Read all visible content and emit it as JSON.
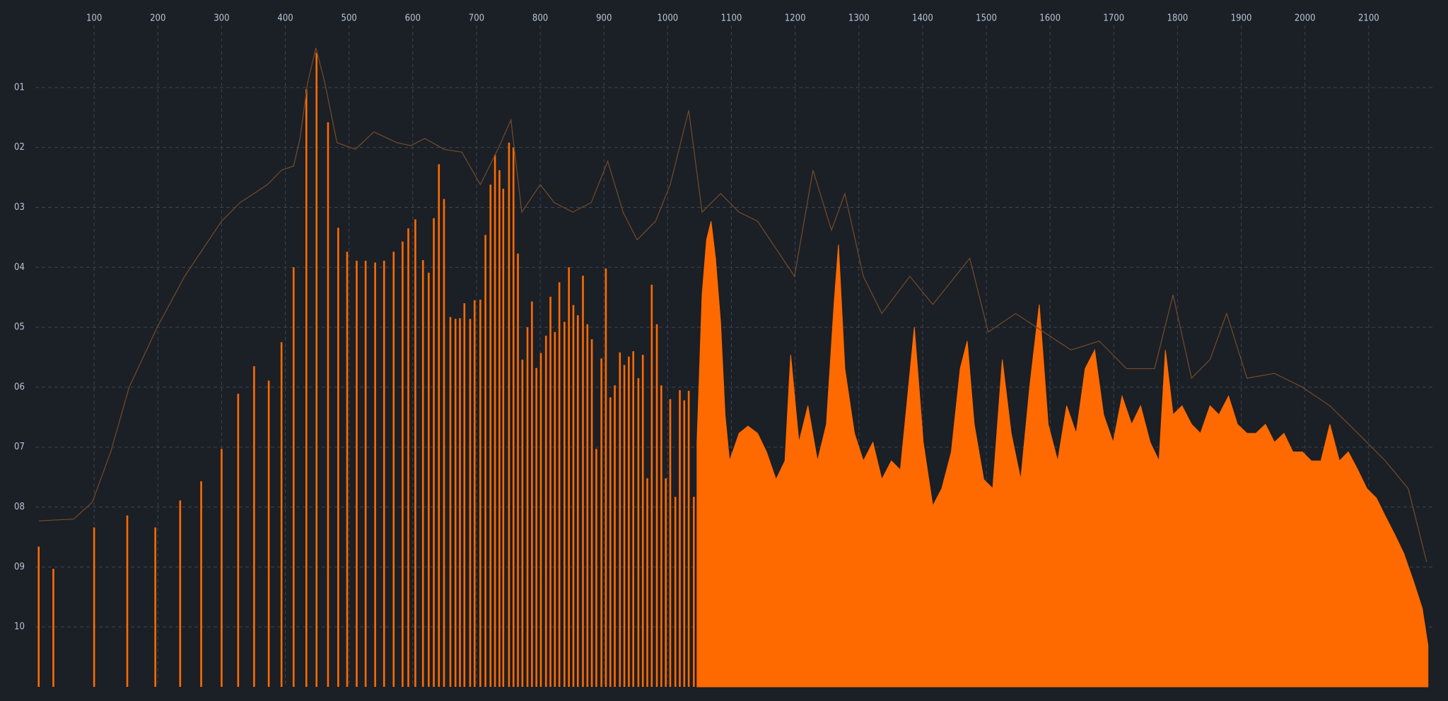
{
  "chart_data": {
    "type": "bar",
    "xlim": [
      0,
      2200
    ],
    "ylim": [
      11,
      0
    ],
    "xticks": [
      100,
      200,
      300,
      400,
      500,
      600,
      700,
      800,
      900,
      1000,
      1100,
      1200,
      1300,
      1400,
      1500,
      1600,
      1700,
      1800,
      1900,
      2000,
      2100
    ],
    "yticks": [
      {
        "value": 1,
        "label": "01"
      },
      {
        "value": 2,
        "label": "02"
      },
      {
        "value": 3,
        "label": "03"
      },
      {
        "value": 4,
        "label": "04"
      },
      {
        "value": 5,
        "label": "05"
      },
      {
        "value": 6,
        "label": "06"
      },
      {
        "value": 7,
        "label": "07"
      },
      {
        "value": 8,
        "label": "08"
      },
      {
        "value": 9,
        "label": "09"
      },
      {
        "value": 10,
        "label": "10"
      }
    ],
    "grid": true,
    "series": [
      {
        "type": "bar",
        "color": "#ff6a00",
        "x": [
          13,
          36,
          100,
          152,
          196,
          235,
          268,
          300,
          326,
          351,
          374,
          394,
          413,
          433,
          449,
          467,
          483,
          497,
          512,
          526,
          541,
          555,
          570,
          584,
          593,
          604,
          616,
          625,
          633,
          641,
          649,
          659,
          667,
          674,
          681,
          690,
          697,
          706,
          714,
          722,
          729,
          736,
          742,
          751,
          758,
          765,
          772,
          780,
          787,
          794,
          801,
          809,
          816,
          823,
          830,
          838,
          845,
          852,
          859,
          867,
          874,
          881,
          888,
          896,
          903,
          910,
          917,
          925,
          932,
          939,
          946,
          954,
          961,
          968,
          975,
          983,
          990,
          997,
          1004,
          1012,
          1019,
          1026,
          1033,
          1041
        ],
        "values": [
          8.66,
          9.03,
          8.34,
          8.14,
          8.34,
          7.89,
          7.57,
          7.03,
          6.11,
          5.65,
          5.89,
          5.25,
          4.0,
          1.03,
          0.42,
          1.58,
          3.34,
          3.74,
          3.89,
          3.89,
          3.92,
          3.89,
          3.74,
          3.57,
          3.35,
          3.2,
          3.88,
          4.09,
          3.18,
          2.28,
          2.86,
          4.83,
          4.86,
          4.85,
          4.6,
          4.86,
          4.55,
          4.54,
          3.46,
          2.62,
          2.12,
          2.38,
          2.69,
          1.92,
          2.0,
          3.77,
          5.54,
          5.0,
          4.57,
          5.68,
          5.43,
          5.14,
          4.49,
          5.08,
          4.25,
          4.91,
          4.0,
          4.63,
          4.8,
          4.14,
          4.95,
          5.2,
          7.03,
          5.52,
          4.02,
          6.17,
          5.97,
          5.42,
          5.63,
          5.49,
          5.4,
          5.85,
          5.46,
          7.52,
          4.29,
          4.95,
          5.97,
          7.52,
          6.2,
          7.83,
          6.05,
          6.22,
          6.06,
          7.83
        ]
      },
      {
        "type": "area",
        "color": "#ff6a00",
        "x": [
          1046,
          1054,
          1061,
          1068,
          1075,
          1083,
          1090,
          1097,
          1112,
          1126,
          1141,
          1155,
          1170,
          1184,
          1193,
          1206,
          1220,
          1235,
          1249,
          1261,
          1268,
          1278,
          1293,
          1307,
          1322,
          1336,
          1351,
          1365,
          1375,
          1387,
          1401,
          1416,
          1430,
          1445,
          1459,
          1470,
          1481,
          1496,
          1510,
          1525,
          1539,
          1554,
          1568,
          1583,
          1597,
          1612,
          1626,
          1641,
          1655,
          1670,
          1684,
          1699,
          1713,
          1728,
          1742,
          1757,
          1771,
          1781,
          1793,
          1807,
          1822,
          1836,
          1851,
          1865,
          1880,
          1894,
          1909,
          1923,
          1938,
          1952,
          1967,
          1981,
          1996,
          2010,
          2025,
          2039,
          2054,
          2068,
          2083,
          2097,
          2112,
          2126,
          2141,
          2155,
          2170,
          2184,
          2193
        ],
        "values": [
          6.92,
          4.46,
          3.54,
          3.23,
          3.85,
          4.92,
          6.46,
          7.23,
          6.77,
          6.65,
          6.77,
          7.08,
          7.54,
          7.23,
          5.46,
          6.92,
          6.31,
          7.23,
          6.62,
          4.62,
          3.62,
          5.69,
          6.77,
          7.23,
          6.92,
          7.54,
          7.23,
          7.38,
          6.31,
          5.0,
          6.92,
          7.98,
          7.69,
          7.08,
          5.69,
          5.23,
          6.62,
          7.54,
          7.69,
          5.54,
          6.77,
          7.54,
          6.0,
          4.62,
          6.62,
          7.23,
          6.31,
          6.77,
          5.69,
          5.38,
          6.46,
          6.92,
          6.15,
          6.62,
          6.31,
          6.92,
          7.23,
          5.38,
          6.46,
          6.31,
          6.62,
          6.77,
          6.31,
          6.46,
          6.15,
          6.62,
          6.77,
          6.77,
          6.62,
          6.92,
          6.77,
          7.08,
          7.08,
          7.23,
          7.23,
          6.62,
          7.23,
          7.08,
          7.38,
          7.69,
          7.85,
          8.15,
          8.46,
          8.77,
          9.23,
          9.69,
          10.31
        ]
      },
      {
        "type": "line",
        "color": "#6e4a28",
        "x": [
          13,
          68,
          97,
          126,
          155,
          199,
          242,
          300,
          329,
          372,
          394,
          413,
          423,
          435,
          448,
          462,
          481,
          510,
          539,
          575,
          597,
          619,
          649,
          677,
          706,
          735,
          754,
          771,
          800,
          822,
          851,
          880,
          906,
          930,
          952,
          981,
          1004,
          1033,
          1054,
          1083,
          1112,
          1141,
          1170,
          1199,
          1228,
          1257,
          1278,
          1307,
          1336,
          1380,
          1416,
          1474,
          1503,
          1546,
          1590,
          1633,
          1677,
          1720,
          1764,
          1793,
          1822,
          1851,
          1877,
          1909,
          1952,
          1996,
          2039,
          2083,
          2126,
          2162,
          2191
        ],
        "values": [
          8.23,
          8.2,
          7.92,
          7.08,
          6.0,
          5.0,
          4.15,
          3.23,
          2.92,
          2.62,
          2.38,
          2.31,
          1.85,
          0.92,
          0.34,
          0.92,
          1.92,
          2.03,
          1.74,
          1.92,
          1.97,
          1.85,
          2.03,
          2.08,
          2.62,
          2.0,
          1.54,
          3.08,
          2.62,
          2.92,
          3.08,
          2.92,
          2.23,
          3.08,
          3.54,
          3.23,
          2.62,
          1.38,
          3.08,
          2.77,
          3.08,
          3.23,
          3.69,
          4.15,
          2.38,
          3.38,
          2.77,
          4.15,
          4.77,
          4.15,
          4.62,
          3.85,
          5.08,
          4.77,
          5.08,
          5.38,
          5.23,
          5.69,
          5.69,
          4.46,
          5.85,
          5.54,
          4.77,
          5.85,
          5.77,
          6.0,
          6.31,
          6.77,
          7.23,
          7.69,
          8.92
        ]
      }
    ]
  }
}
